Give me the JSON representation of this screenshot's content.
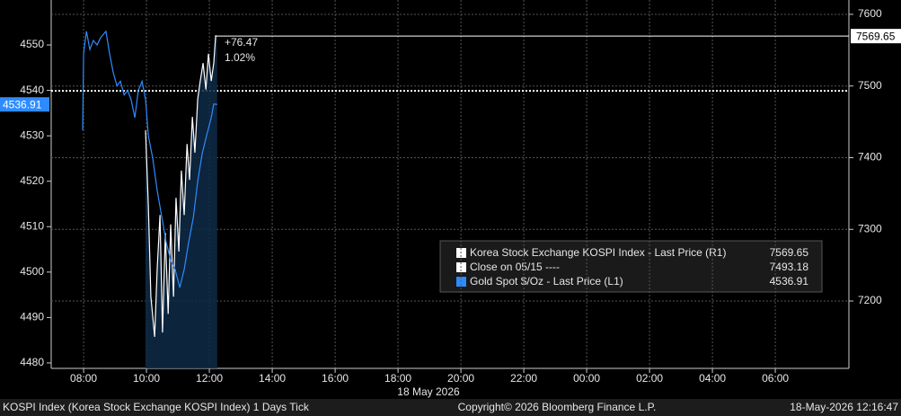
{
  "chart_data": {
    "type": "line",
    "date_label": "18 May 2026",
    "footer_left": "KOSPI Index (Korea Stock Exchange KOSPI Index) 1 Days Tick",
    "footer_center": "Copyright© 2026 Bloomberg Finance L.P.",
    "footer_right": "18-May-2026 12:16:47",
    "annotations": [
      "+76.47",
      "1.02%"
    ],
    "xlim": [
      6.97,
      32.34
    ],
    "xticks": [
      {
        "value": 8,
        "label": "08:00"
      },
      {
        "value": 10,
        "label": "10:00"
      },
      {
        "value": 12,
        "label": "12:00"
      },
      {
        "value": 14,
        "label": "14:00"
      },
      {
        "value": 16,
        "label": "16:00"
      },
      {
        "value": 18,
        "label": "18:00"
      },
      {
        "value": 20,
        "label": "20:00"
      },
      {
        "value": 22,
        "label": "22:00"
      },
      {
        "value": 24,
        "label": "00:00"
      },
      {
        "value": 26,
        "label": "02:00"
      },
      {
        "value": 28,
        "label": "04:00"
      },
      {
        "value": 30,
        "label": "06:00"
      }
    ],
    "ylim": [
      4478.8,
      4559.9
    ],
    "yticks": [
      4480,
      4490,
      4500,
      4510,
      4520,
      4530,
      4540,
      4550
    ],
    "y2lim": [
      7106,
      7620
    ],
    "y2ticks": [
      7200,
      7300,
      7400,
      7500,
      7600
    ],
    "grid": true,
    "reference_line": {
      "name": "Close on 05/15 ----",
      "value": 7493.18,
      "axis": "y2",
      "color": "#ffffff"
    },
    "series": [
      {
        "name": "Korea Stock Exchange KOSPI Index - Last Price (R1)",
        "color": "#ffffff",
        "axis": "y2",
        "x": [
          9.97,
          10.06,
          10.14,
          10.26,
          10.34,
          10.43,
          10.51,
          10.6,
          10.69,
          10.77,
          10.86,
          10.94,
          11.03,
          11.11,
          11.2,
          11.29,
          11.37,
          11.46,
          11.54,
          11.63,
          11.71,
          11.8,
          11.89,
          11.97,
          12.06,
          12.14,
          12.2,
          12.25
        ],
        "values": [
          7438,
          7332,
          7206,
          7150,
          7244,
          7320,
          7156,
          7295,
          7182,
          7307,
          7206,
          7344,
          7269,
          7382,
          7320,
          7419,
          7369,
          7457,
          7407,
          7482,
          7507,
          7532,
          7495,
          7545,
          7507,
          7532,
          7570,
          7569.65
        ]
      },
      {
        "name": "Gold Spot $/Oz - Last Price (L1)",
        "color": "#2e8bff",
        "axis": "y",
        "x": [
          7.97,
          8.0,
          8.09,
          8.2,
          8.31,
          8.43,
          8.54,
          8.71,
          8.83,
          8.94,
          9.06,
          9.17,
          9.29,
          9.4,
          9.51,
          9.63,
          9.74,
          9.86,
          9.97,
          10.06,
          10.2,
          10.34,
          10.49,
          10.63,
          10.77,
          10.91,
          11.06,
          11.2,
          11.34,
          11.49,
          11.63,
          11.77,
          11.91,
          12.06,
          12.14,
          12.25
        ],
        "values": [
          4531.2,
          4548,
          4553,
          4549,
          4551,
          4550,
          4551.6,
          4553,
          4548,
          4544,
          4541,
          4542,
          4539,
          4540,
          4538,
          4534,
          4540,
          4542,
          4538,
          4530,
          4525,
          4518,
          4512,
          4506.5,
          4502.6,
          4500.6,
          4496.6,
          4500.6,
          4506.5,
          4512,
          4520,
          4526,
          4530,
          4534,
          4537,
          4536.91
        ]
      }
    ]
  }
}
